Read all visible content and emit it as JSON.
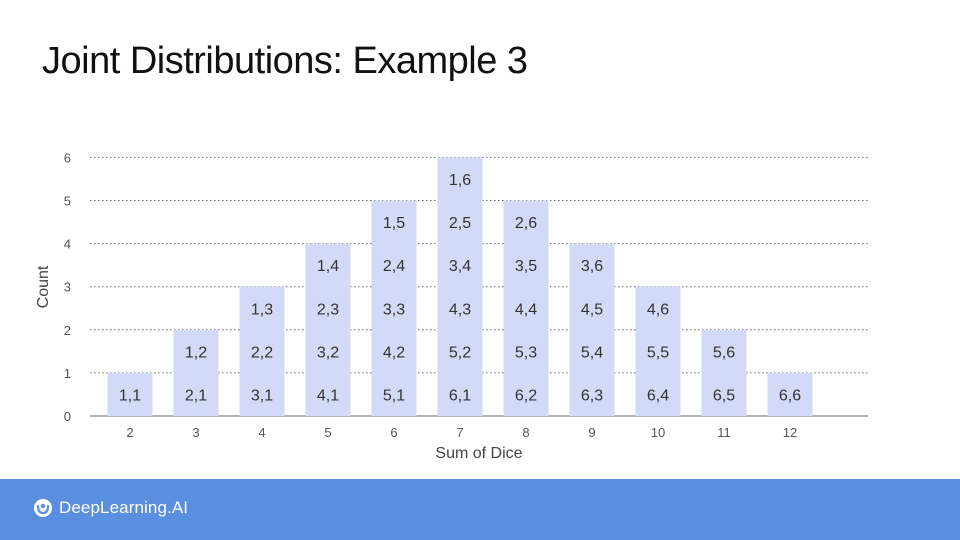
{
  "slide": {
    "title": "Joint Distributions: Example 3"
  },
  "footer": {
    "brand": "DeepLearning.AI",
    "background": "#5a8fe0"
  },
  "chart_data": {
    "type": "bar",
    "xlabel": "Sum of Dice",
    "ylabel": "Count",
    "categories": [
      "2",
      "3",
      "4",
      "5",
      "6",
      "7",
      "8",
      "9",
      "10",
      "11",
      "12"
    ],
    "values": [
      1,
      2,
      3,
      4,
      5,
      6,
      5,
      4,
      3,
      2,
      1
    ],
    "ylim": [
      0,
      6
    ],
    "yticks": [
      0,
      1,
      2,
      3,
      4,
      5,
      6
    ],
    "grid": true,
    "bar_color": "#d3daf7",
    "cell_labels": [
      [
        "1,1"
      ],
      [
        "2,1",
        "1,2"
      ],
      [
        "3,1",
        "2,2",
        "1,3"
      ],
      [
        "4,1",
        "3,2",
        "2,3",
        "1,4"
      ],
      [
        "5,1",
        "4,2",
        "3,3",
        "2,4",
        "1,5"
      ],
      [
        "6,1",
        "5,2",
        "4,3",
        "3,4",
        "2,5",
        "1,6"
      ],
      [
        "6,2",
        "5,3",
        "4,4",
        "3,5",
        "2,6"
      ],
      [
        "6,3",
        "5,4",
        "4,5",
        "3,6"
      ],
      [
        "6,4",
        "5,5",
        "4,6"
      ],
      [
        "6,5",
        "5,6"
      ],
      [
        "6,6"
      ]
    ]
  }
}
